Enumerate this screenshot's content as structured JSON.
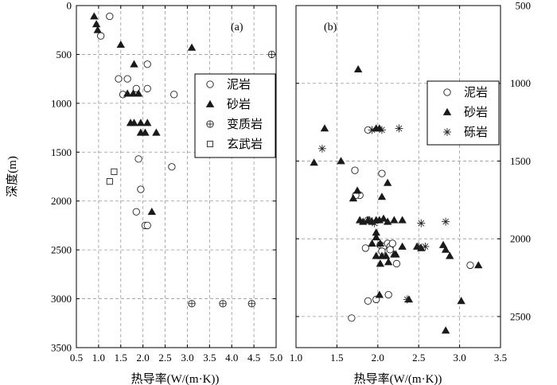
{
  "chart_data": [
    {
      "type": "scatter",
      "panel_label": "(a)",
      "xlabel": "热导率(W/(m·K))",
      "ylabel": "深度(m)",
      "xlim": [
        0.5,
        5.0
      ],
      "ylim": [
        0,
        3500
      ],
      "y_inverted": true,
      "x_ticks": [
        "0.5",
        "1.0",
        "1.5",
        "2.0",
        "2.5",
        "3.0",
        "3.5",
        "4.0",
        "4.5",
        "5.0"
      ],
      "y_ticks": [
        "0",
        "500",
        "1000",
        "1500",
        "2000",
        "2500",
        "3000",
        "3500"
      ],
      "grid": true,
      "legend_position": "right-middle",
      "series": [
        {
          "name": "泥岩",
          "marker": "circle-open",
          "points": [
            [
              1.25,
              110
            ],
            [
              1.05,
              310
            ],
            [
              1.45,
              750
            ],
            [
              1.65,
              750
            ],
            [
              2.1,
              600
            ],
            [
              1.85,
              850
            ],
            [
              2.1,
              850
            ],
            [
              1.55,
              910
            ],
            [
              2.7,
              910
            ],
            [
              1.9,
              1570
            ],
            [
              2.65,
              1650
            ],
            [
              1.95,
              1880
            ],
            [
              1.85,
              2110
            ],
            [
              2.05,
              2250
            ],
            [
              2.1,
              2250
            ]
          ]
        },
        {
          "name": "砂岩",
          "marker": "triangle-filled",
          "points": [
            [
              0.9,
              110
            ],
            [
              0.95,
              190
            ],
            [
              0.98,
              250
            ],
            [
              1.5,
              400
            ],
            [
              3.1,
              430
            ],
            [
              1.8,
              600
            ],
            [
              1.65,
              900
            ],
            [
              1.78,
              900
            ],
            [
              1.9,
              900
            ],
            [
              1.72,
              1200
            ],
            [
              1.8,
              1200
            ],
            [
              1.95,
              1200
            ],
            [
              2.1,
              1200
            ],
            [
              1.95,
              1300
            ],
            [
              2.05,
              1300
            ],
            [
              2.3,
              1300
            ],
            [
              2.2,
              2110
            ]
          ]
        },
        {
          "name": "变质岩",
          "marker": "circle-plus",
          "points": [
            [
              4.9,
              500
            ],
            [
              3.1,
              3050
            ],
            [
              3.8,
              3050
            ],
            [
              4.45,
              3050
            ]
          ]
        },
        {
          "name": "玄武岩",
          "marker": "square-open",
          "points": [
            [
              1.35,
              1700
            ],
            [
              1.25,
              1800
            ]
          ]
        }
      ]
    },
    {
      "type": "scatter",
      "panel_label": "(b)",
      "xlabel": "热导率(W/(m·K))",
      "ylabel": "",
      "xlim": [
        1.0,
        3.5
      ],
      "ylim": [
        500,
        2700
      ],
      "y_inverted": true,
      "y_axis_side": "right",
      "x_ticks": [
        "1.0",
        "1.5",
        "2.0",
        "2.5",
        "3.0",
        "3.5"
      ],
      "y_ticks": [
        "500",
        "1000",
        "1500",
        "2000",
        "2500"
      ],
      "grid": true,
      "legend_position": "top-right",
      "series": [
        {
          "name": "泥岩",
          "marker": "circle-open",
          "points": [
            [
              1.88,
              1300
            ],
            [
              1.72,
              1560
            ],
            [
              1.78,
              1720
            ],
            [
              1.73,
              1720
            ],
            [
              1.88,
              1880
            ],
            [
              1.85,
              2060
            ],
            [
              2.03,
              2040
            ],
            [
              2.07,
              2050
            ],
            [
              2.12,
              2030
            ],
            [
              2.15,
              2050
            ],
            [
              2.05,
              2080
            ],
            [
              2.15,
              2070
            ],
            [
              2.18,
              2030
            ],
            [
              2.23,
              2160
            ],
            [
              2.13,
              2360
            ],
            [
              3.13,
              2170
            ],
            [
              1.88,
              2400
            ],
            [
              1.98,
              2390
            ],
            [
              1.68,
              2510
            ],
            [
              2.05,
              1580
            ]
          ]
        },
        {
          "name": "砂岩",
          "marker": "triangle-filled",
          "points": [
            [
              1.76,
              910
            ],
            [
              1.98,
              1290
            ],
            [
              2.02,
              1290
            ],
            [
              1.35,
              1290
            ],
            [
              1.22,
              1510
            ],
            [
              1.55,
              1500
            ],
            [
              1.7,
              1740
            ],
            [
              1.75,
              1690
            ],
            [
              2.05,
              1730
            ],
            [
              2.12,
              1640
            ],
            [
              1.78,
              1880
            ],
            [
              1.82,
              1890
            ],
            [
              1.88,
              1880
            ],
            [
              1.93,
              1890
            ],
            [
              1.98,
              1880
            ],
            [
              2.02,
              1880
            ],
            [
              2.07,
              1870
            ],
            [
              2.12,
              1890
            ],
            [
              2.2,
              1880
            ],
            [
              2.3,
              1880
            ],
            [
              1.98,
              1990
            ],
            [
              2.03,
              2030
            ],
            [
              1.93,
              2030
            ],
            [
              2.05,
              2110
            ],
            [
              2.1,
              2110
            ],
            [
              2.2,
              2100
            ],
            [
              1.98,
              2110
            ],
            [
              2.03,
              2160
            ],
            [
              2.13,
              2150
            ],
            [
              2.22,
              2100
            ],
            [
              2.3,
              2050
            ],
            [
              2.48,
              2050
            ],
            [
              2.53,
              2060
            ],
            [
              2.8,
              2040
            ],
            [
              2.83,
              2070
            ],
            [
              2.88,
              2110
            ],
            [
              3.23,
              2170
            ],
            [
              2.38,
              2390
            ],
            [
              3.02,
              2400
            ],
            [
              2.02,
              2360
            ],
            [
              2.83,
              2590
            ],
            [
              1.98,
              1960
            ]
          ]
        },
        {
          "name": "砾岩",
          "marker": "asterisk",
          "points": [
            [
              1.93,
              1300
            ],
            [
              2.05,
              1300
            ],
            [
              2.26,
              1290
            ],
            [
              1.32,
              1420
            ],
            [
              1.9,
              1880
            ],
            [
              1.96,
              1900
            ],
            [
              2.53,
              1900
            ],
            [
              2.83,
              1890
            ],
            [
              2.5,
              2050
            ],
            [
              2.58,
              2050
            ],
            [
              2.36,
              2390
            ]
          ]
        }
      ]
    }
  ],
  "legend_a": {
    "items": [
      "泥岩",
      "砂岩",
      "变质岩",
      "玄武岩"
    ]
  },
  "legend_b": {
    "items": [
      "泥岩",
      "砂岩",
      "砾岩"
    ]
  }
}
